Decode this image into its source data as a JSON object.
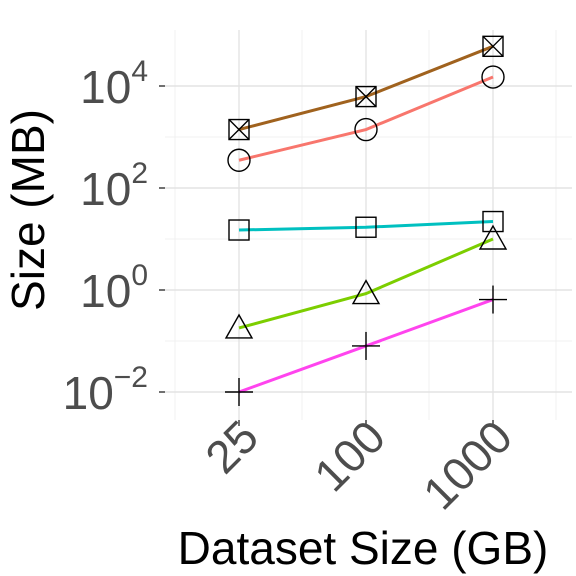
{
  "chart_data": {
    "type": "line",
    "xlabel": "Dataset Size (GB)",
    "ylabel": "Size (MB)",
    "x_scale": "categorical",
    "y_scale": "log10",
    "categories": [
      "25",
      "100",
      "1000"
    ],
    "y_ticks": [
      {
        "value": 0.01,
        "base": "10",
        "exp": "−2"
      },
      {
        "value": 1,
        "base": "10",
        "exp": "0"
      },
      {
        "value": 100,
        "base": "10",
        "exp": "2"
      },
      {
        "value": 10000,
        "base": "10",
        "exp": "4"
      }
    ],
    "ylim": [
      0.0035,
      100000
    ],
    "grid": true,
    "legend": "none",
    "series": [
      {
        "color": "#a0621e",
        "marker": "boxx",
        "values": [
          1400,
          6200,
          60000
        ]
      },
      {
        "color": "#f8766d",
        "marker": "circle",
        "values": [
          350,
          1400,
          15000
        ]
      },
      {
        "color": "#00c0c0",
        "marker": "square",
        "values": [
          15,
          17,
          22
        ]
      },
      {
        "color": "#7cce00",
        "marker": "triangle",
        "values": [
          0.18,
          0.85,
          10
        ]
      },
      {
        "color": "#ff44ee",
        "marker": "plus",
        "values": [
          0.01,
          0.08,
          0.65
        ]
      }
    ]
  }
}
